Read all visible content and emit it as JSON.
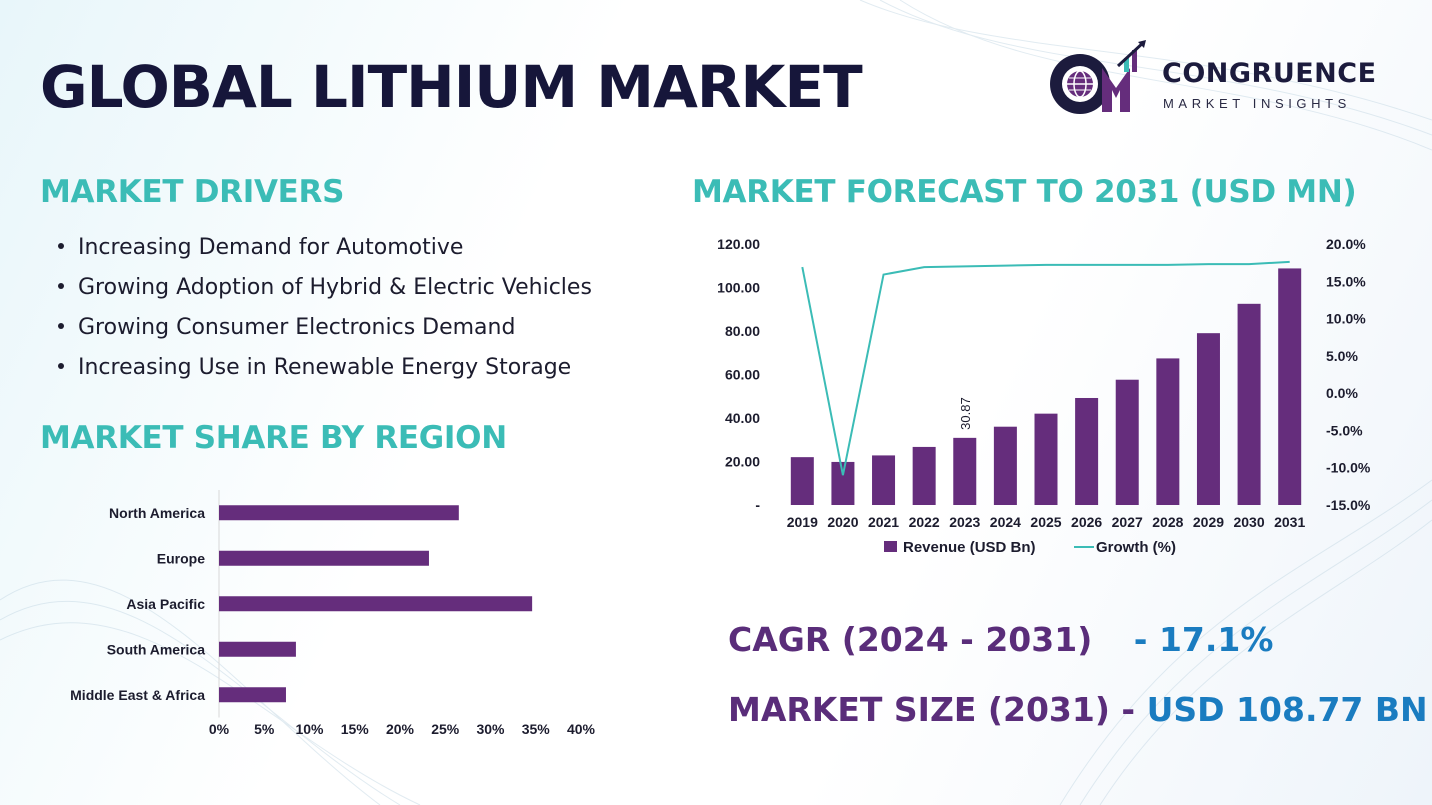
{
  "title": "GLOBAL LITHIUM MARKET",
  "logo": {
    "name": "CONGRUENCE",
    "tagline": "MARKET INSIGHTS",
    "icon": "cm-globe-logo-icon"
  },
  "drivers": {
    "heading": "MARKET DRIVERS",
    "items": [
      "Increasing Demand for Automotive",
      "Growing Adoption of Hybrid & Electric Vehicles",
      "Growing Consumer Electronics Demand",
      "Increasing Use in Renewable Energy Storage"
    ]
  },
  "share_heading": "MARKET SHARE BY REGION",
  "forecast_heading": "MARKET FORECAST TO 2031 (USD MN)",
  "stats": {
    "cagr_label": "CAGR (2024 - 2031)",
    "cagr_value": "- 17.1%",
    "size_label": "MARKET SIZE (2031)",
    "size_dash": " - ",
    "size_value": "USD 108.77 BN"
  },
  "colors": {
    "bar": "#652d7c",
    "line": "#3bbcb6",
    "heading": "#3bbcb6",
    "title": "#16163a",
    "value_blue": "#1a7cc0"
  },
  "chart_data": [
    {
      "type": "bar",
      "orientation": "horizontal",
      "categories": [
        "North America",
        "Europe",
        "Asia Pacific",
        "South America",
        "Middle East & Africa"
      ],
      "values": [
        26.5,
        23.2,
        34.6,
        8.5,
        7.4
      ],
      "xlim": [
        0,
        40
      ],
      "xticks": [
        "0%",
        "5%",
        "10%",
        "15%",
        "20%",
        "25%",
        "30%",
        "35%",
        "40%"
      ],
      "grid": false,
      "legend": "none"
    },
    {
      "type": "bar",
      "categories": [
        "2019",
        "2020",
        "2021",
        "2022",
        "2023",
        "2024",
        "2025",
        "2026",
        "2027",
        "2028",
        "2029",
        "2030",
        "2031"
      ],
      "series": [
        {
          "name": "Revenue (USD Bn)",
          "type": "bar",
          "axis": "left",
          "values": [
            22.0,
            19.8,
            22.8,
            26.7,
            30.87,
            36.0,
            42.0,
            49.2,
            57.6,
            67.4,
            79.0,
            92.5,
            108.77
          ]
        },
        {
          "name": "Growth (%)",
          "type": "line",
          "axis": "right",
          "values": [
            16.9,
            -11.0,
            15.9,
            16.9,
            17.0,
            17.1,
            17.2,
            17.2,
            17.2,
            17.2,
            17.3,
            17.3,
            17.6
          ]
        }
      ],
      "data_labels": [
        {
          "index": 4,
          "text": "30.87"
        }
      ],
      "y_left": {
        "lim": [
          0,
          120
        ],
        "ticks": [
          "-",
          "20.00",
          "40.00",
          "60.00",
          "80.00",
          "100.00",
          "120.00"
        ]
      },
      "y_right": {
        "lim": [
          -15,
          20
        ],
        "ticks": [
          "-15.0%",
          "-10.0%",
          "-5.0%",
          "0.0%",
          "5.0%",
          "10.0%",
          "15.0%",
          "20.0%"
        ]
      },
      "grid": false,
      "legend": "bottom"
    }
  ]
}
